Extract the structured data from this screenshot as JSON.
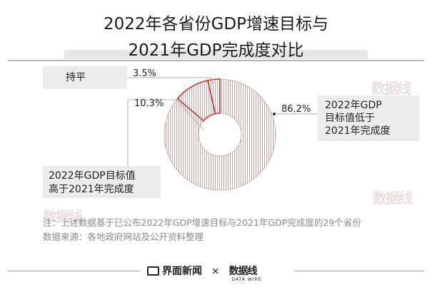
{
  "title_line1": "2022年各省份GDP增速目标与",
  "title_line2": "2021年GDP完成度对比",
  "chart_data": {
    "type": "pie",
    "title": "2022年各省份GDP增速目标与2021年GDP完成度对比",
    "slices": [
      {
        "name": "2022年GDP目标值低于2021年完成度",
        "value": 86.2,
        "label": "86.2%"
      },
      {
        "name": "2022年GDP目标值高于2021年完成度",
        "value": 10.3,
        "label": "10.3%"
      },
      {
        "name": "持平",
        "value": 3.5,
        "label": "3.5%"
      }
    ],
    "colors": {
      "hatch": "#c9a19f",
      "hatch_bg": "#ffffff",
      "highlight_stroke": "#c0392b",
      "label_bg": "#ececec"
    }
  },
  "labels": {
    "chiping": "持平",
    "high_line1": "2022年GDP目标值",
    "high_line2": "高于2021年完成度",
    "low_line1": "2022年GDP",
    "low_line2": "目标值低于",
    "low_line3": "2021年完成度"
  },
  "notes": {
    "line1": "注：上述数据基于已公布2022年GDP增速目标与2021年GDP完成度的29个省份",
    "line2": "数据来源：各地政府网站及公开资料整理"
  },
  "footer": {
    "brand": "界面新闻",
    "sep": "×",
    "partner": "数据线",
    "partner_sub": "DATA WIRE"
  }
}
